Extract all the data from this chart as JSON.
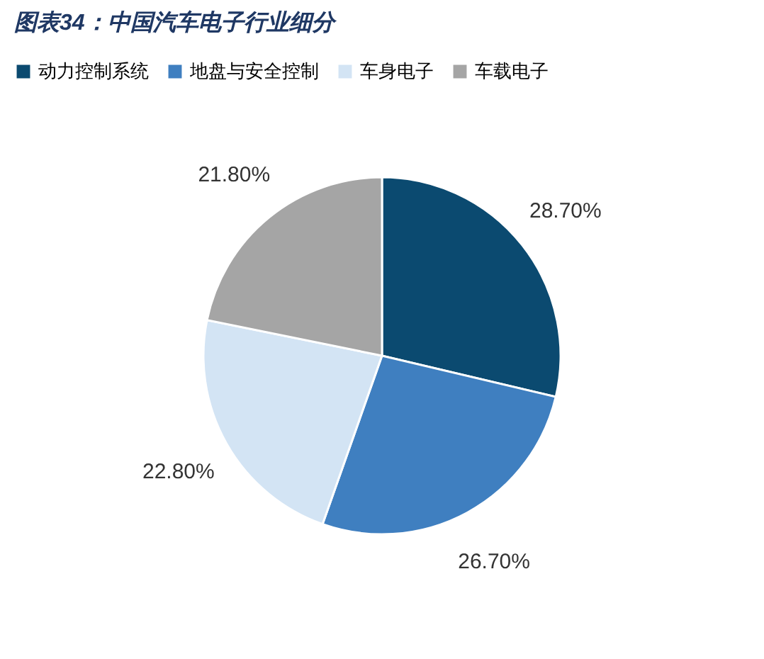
{
  "chart_data": {
    "type": "pie",
    "title": "图表34：中国汽车电子行业细分",
    "categories": [
      "动力控制系统",
      "地盘与安全控制",
      "车身电子",
      "车载电子"
    ],
    "values": [
      28.7,
      26.7,
      22.8,
      21.8
    ],
    "value_labels": [
      "28.70%",
      "26.70%",
      "22.80%",
      "21.80%"
    ],
    "colors": [
      "#0b4a70",
      "#3f7fc0",
      "#d3e4f4",
      "#a5a5a5"
    ],
    "legend": "top"
  }
}
